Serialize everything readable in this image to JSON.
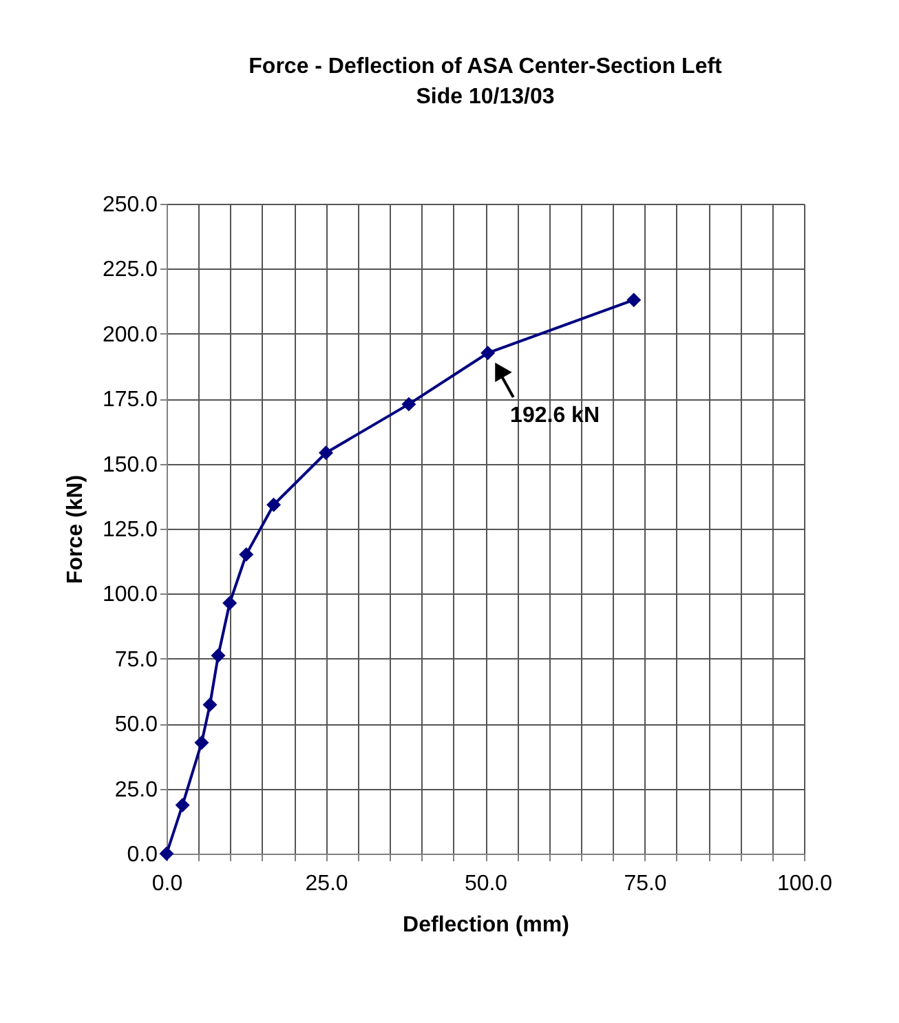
{
  "chart_data": {
    "type": "line",
    "title": "Force - Deflection of ASA Center-Section Left Side 10/13/03",
    "xlabel": "Deflection (mm)",
    "ylabel": "Force (kN)",
    "x": [
      0,
      2.5,
      5.5,
      6.8,
      8.1,
      9.9,
      12.5,
      16.8,
      25.0,
      38.0,
      50.4,
      73.3
    ],
    "series": [
      {
        "color": "#000080",
        "values": [
          0,
          18.7,
          42.7,
          57.3,
          76.2,
          96.4,
          115.1,
          134.2,
          154.2,
          172.9,
          192.6,
          213.0
        ]
      }
    ],
    "xlim": [
      0,
      100
    ],
    "ylim": [
      0,
      250
    ],
    "xticks": [
      {
        "value": 0,
        "label": "0.0"
      },
      {
        "value": 5,
        "label": null
      },
      {
        "value": 10,
        "label": null
      },
      {
        "value": 15,
        "label": null
      },
      {
        "value": 20,
        "label": null
      },
      {
        "value": 25,
        "label": "25.0"
      },
      {
        "value": 30,
        "label": null
      },
      {
        "value": 35,
        "label": null
      },
      {
        "value": 40,
        "label": null
      },
      {
        "value": 45,
        "label": null
      },
      {
        "value": 50,
        "label": "50.0"
      },
      {
        "value": 55,
        "label": null
      },
      {
        "value": 60,
        "label": null
      },
      {
        "value": 65,
        "label": null
      },
      {
        "value": 70,
        "label": null
      },
      {
        "value": 75,
        "label": "75.0"
      },
      {
        "value": 80,
        "label": null
      },
      {
        "value": 85,
        "label": null
      },
      {
        "value": 90,
        "label": null
      },
      {
        "value": 95,
        "label": null
      },
      {
        "value": 100,
        "label": "100.0"
      }
    ],
    "yticks": [
      {
        "value": 0,
        "label": "0.0"
      },
      {
        "value": 25,
        "label": "25.0"
      },
      {
        "value": 50,
        "label": "50.0"
      },
      {
        "value": 75,
        "label": "75.0"
      },
      {
        "value": 100,
        "label": "100.0"
      },
      {
        "value": 125,
        "label": "125.0"
      },
      {
        "value": 150,
        "label": "150.0"
      },
      {
        "value": 175,
        "label": "175.0"
      },
      {
        "value": 200,
        "label": "200.0"
      },
      {
        "value": 225,
        "label": "225.0"
      },
      {
        "value": 250,
        "label": "250.0"
      }
    ],
    "grid": true,
    "marker": "diamond",
    "line_style": "solid",
    "annotations": [
      {
        "text": "192.6 kN",
        "x": 50.4,
        "y": 192.6
      }
    ]
  }
}
